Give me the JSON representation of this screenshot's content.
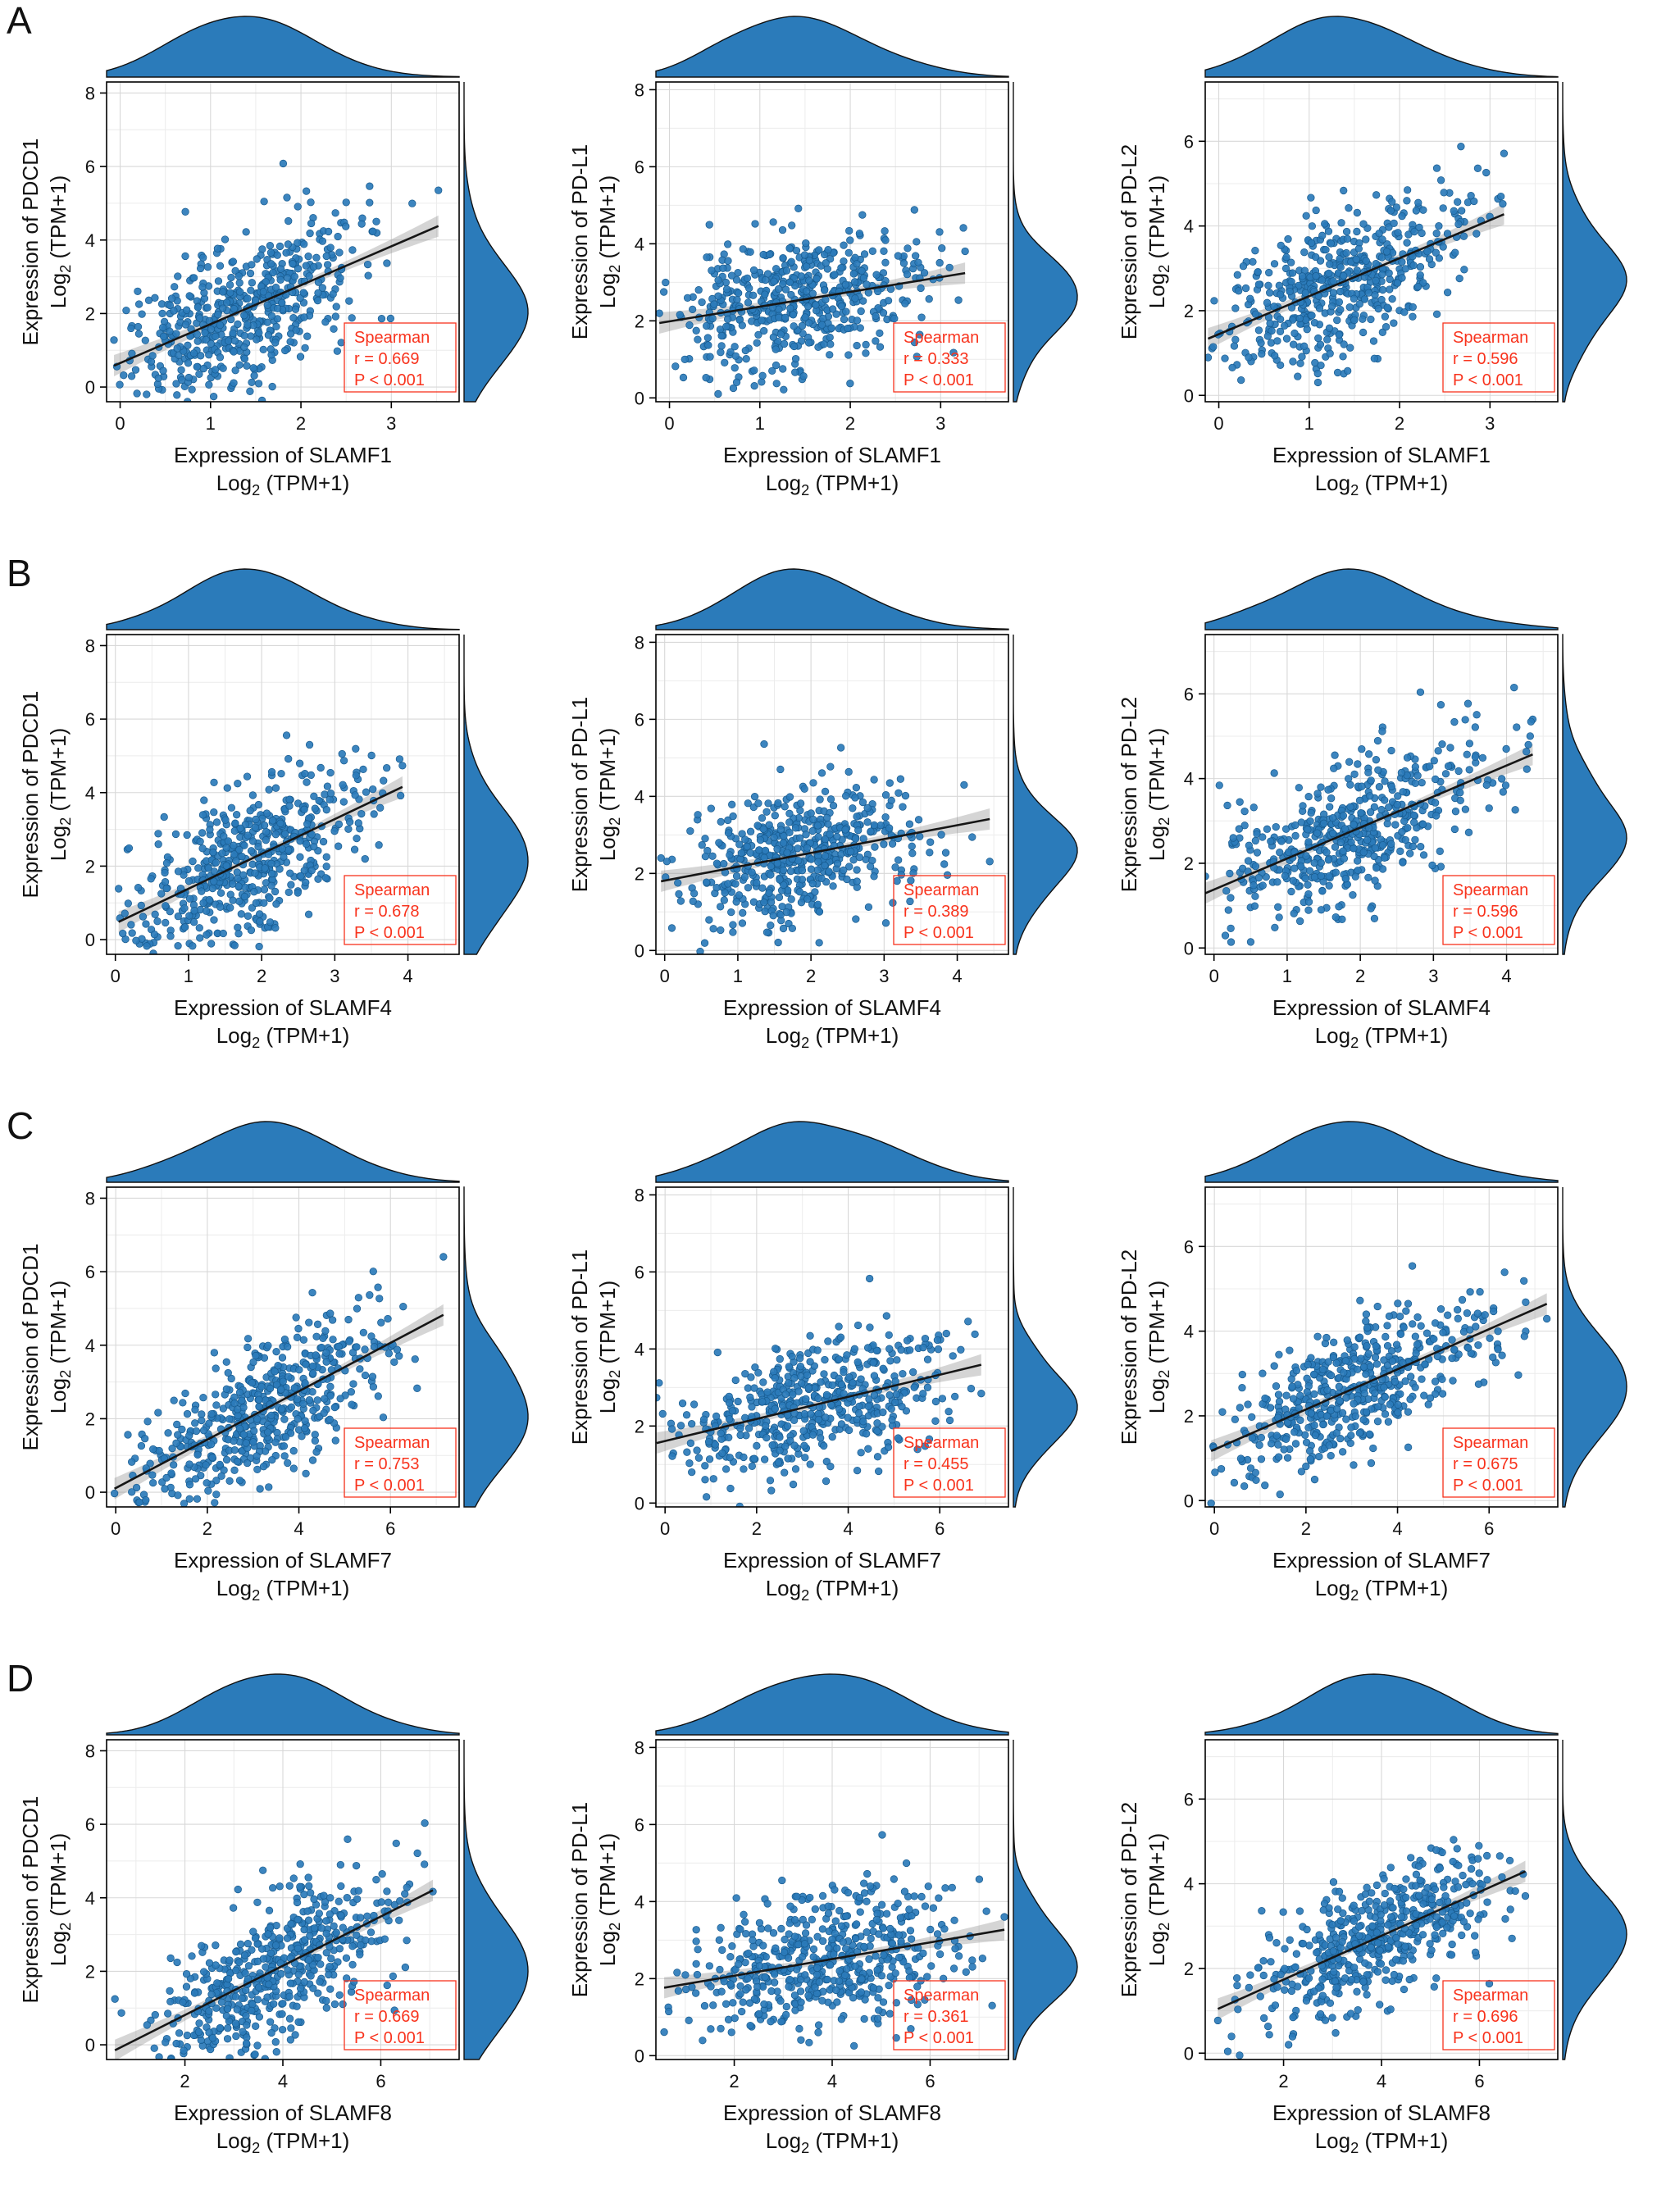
{
  "figure": {
    "background": "#ffffff",
    "rows": [
      {
        "label": "A",
        "x_gene": "SLAMF1"
      },
      {
        "label": "B",
        "x_gene": "SLAMF4"
      },
      {
        "label": "C",
        "x_gene": "SLAMF7"
      },
      {
        "label": "D",
        "x_gene": "SLAMF8"
      }
    ]
  },
  "style": {
    "point_color": "#2b7bba",
    "point_edge": "#175a8e",
    "density_fill": "#2b7bba",
    "density_edge": "#111111",
    "line_color": "#161616",
    "band_color": "#888888",
    "stats_color": "#f8331d",
    "grid_major": "#d8d8d8",
    "grid_minor": "#ececec",
    "axis_color": "#000000",
    "text_color": "#111111"
  },
  "chart_data": {
    "type": "scatter",
    "note": "Scatter plots with top/right marginal density curves, linear fit with confidence band, Spearman correlation annotation",
    "charts": [
      {
        "panel": "A",
        "x_label": "Expression of SLAMF1",
        "y_label": "Expression of PDCD1",
        "sub_label": "Log2 (TPM+1)",
        "stats": {
          "method": "Spearman",
          "r_text": "r = 0.669",
          "p_text": "P < 0.001",
          "r_value": 0.669
        },
        "x": {
          "min": -0.15,
          "max": 3.75,
          "ticks": [
            0,
            1,
            2,
            3
          ],
          "mean": 1.35,
          "sd": 0.72
        },
        "y": {
          "min": -0.4,
          "max": 8.3,
          "ticks": [
            0,
            2,
            4,
            6,
            8
          ],
          "mean": 2.1,
          "sd": 1.35
        },
        "n": 520
      },
      {
        "panel": "A",
        "x_label": "Expression of SLAMF1",
        "y_label": "Expression of PD-L1",
        "sub_label": "Log2 (TPM+1)",
        "stats": {
          "method": "Spearman",
          "r_text": "r = 0.333",
          "p_text": "P < 0.001",
          "r_value": 0.333
        },
        "x": {
          "min": -0.15,
          "max": 3.75,
          "ticks": [
            0,
            1,
            2,
            3
          ],
          "mean": 1.35,
          "sd": 0.72
        },
        "y": {
          "min": -0.1,
          "max": 8.2,
          "ticks": [
            0,
            2,
            4,
            6,
            8
          ],
          "mean": 2.5,
          "sd": 0.95
        },
        "n": 520
      },
      {
        "panel": "A",
        "x_label": "Expression of SLAMF1",
        "y_label": "Expression of PD-L2",
        "sub_label": "Log2 (TPM+1)",
        "stats": {
          "method": "Spearman",
          "r_text": "r = 0.596",
          "p_text": "P < 0.001",
          "r_value": 0.596
        },
        "x": {
          "min": -0.15,
          "max": 3.75,
          "ticks": [
            0,
            1,
            2,
            3
          ],
          "mean": 1.35,
          "sd": 0.72
        },
        "y": {
          "min": -0.15,
          "max": 7.4,
          "ticks": [
            0,
            2,
            4,
            6
          ],
          "mean": 2.7,
          "sd": 1.0
        },
        "n": 520
      },
      {
        "panel": "B",
        "x_label": "Expression of SLAMF4",
        "y_label": "Expression of PDCD1",
        "sub_label": "Log2 (TPM+1)",
        "stats": {
          "method": "Spearman",
          "r_text": "r = 0.678",
          "p_text": "P < 0.001",
          "r_value": 0.678
        },
        "x": {
          "min": -0.12,
          "max": 4.7,
          "ticks": [
            0,
            1,
            2,
            3,
            4
          ],
          "mean": 1.85,
          "sd": 0.85
        },
        "y": {
          "min": -0.4,
          "max": 8.3,
          "ticks": [
            0,
            2,
            4,
            6,
            8
          ],
          "mean": 2.1,
          "sd": 1.35
        },
        "n": 520
      },
      {
        "panel": "B",
        "x_label": "Expression of SLAMF4",
        "y_label": "Expression of PD-L1",
        "sub_label": "Log2 (TPM+1)",
        "stats": {
          "method": "Spearman",
          "r_text": "r = 0.389",
          "p_text": "P < 0.001",
          "r_value": 0.389
        },
        "x": {
          "min": -0.12,
          "max": 4.7,
          "ticks": [
            0,
            1,
            2,
            3,
            4
          ],
          "mean": 1.85,
          "sd": 0.85
        },
        "y": {
          "min": -0.1,
          "max": 8.2,
          "ticks": [
            0,
            2,
            4,
            6,
            8
          ],
          "mean": 2.5,
          "sd": 0.95
        },
        "n": 520
      },
      {
        "panel": "B",
        "x_label": "Expression of SLAMF4",
        "y_label": "Expression of PD-L2",
        "sub_label": "Log2 (TPM+1)",
        "stats": {
          "method": "Spearman",
          "r_text": "r = 0.596",
          "p_text": "P < 0.001",
          "r_value": 0.596
        },
        "x": {
          "min": -0.12,
          "max": 4.7,
          "ticks": [
            0,
            1,
            2,
            3,
            4
          ],
          "mean": 1.85,
          "sd": 0.85
        },
        "y": {
          "min": -0.15,
          "max": 7.4,
          "ticks": [
            0,
            2,
            4,
            6
          ],
          "mean": 2.7,
          "sd": 1.0
        },
        "n": 520
      },
      {
        "panel": "C",
        "x_label": "Expression of SLAMF7",
        "y_label": "Expression of PDCD1",
        "sub_label": "Log2 (TPM+1)",
        "stats": {
          "method": "Spearman",
          "r_text": "r = 0.753",
          "p_text": "P < 0.001",
          "r_value": 0.753
        },
        "x": {
          "min": -0.2,
          "max": 7.5,
          "ticks": [
            0,
            2,
            4,
            6
          ],
          "mean": 3.1,
          "sd": 1.45
        },
        "y": {
          "min": -0.4,
          "max": 8.3,
          "ticks": [
            0,
            2,
            4,
            6,
            8
          ],
          "mean": 2.1,
          "sd": 1.35
        },
        "n": 520
      },
      {
        "panel": "C",
        "x_label": "Expression of SLAMF7",
        "y_label": "Expression of PD-L1",
        "sub_label": "Log2 (TPM+1)",
        "stats": {
          "method": "Spearman",
          "r_text": "r = 0.455",
          "p_text": "P < 0.001",
          "r_value": 0.455
        },
        "x": {
          "min": -0.2,
          "max": 7.5,
          "ticks": [
            0,
            2,
            4,
            6
          ],
          "mean": 3.1,
          "sd": 1.45
        },
        "y": {
          "min": -0.1,
          "max": 8.2,
          "ticks": [
            0,
            2,
            4,
            6,
            8
          ],
          "mean": 2.5,
          "sd": 0.95
        },
        "n": 520
      },
      {
        "panel": "C",
        "x_label": "Expression of SLAMF7",
        "y_label": "Expression of PD-L2",
        "sub_label": "Log2 (TPM+1)",
        "stats": {
          "method": "Spearman",
          "r_text": "r = 0.675",
          "p_text": "P < 0.001",
          "r_value": 0.675
        },
        "x": {
          "min": -0.2,
          "max": 7.5,
          "ticks": [
            0,
            2,
            4,
            6
          ],
          "mean": 3.1,
          "sd": 1.45
        },
        "y": {
          "min": -0.15,
          "max": 7.4,
          "ticks": [
            0,
            2,
            4,
            6
          ],
          "mean": 2.7,
          "sd": 1.0
        },
        "n": 520
      },
      {
        "panel": "D",
        "x_label": "Expression of SLAMF8",
        "y_label": "Expression of PDCD1",
        "sub_label": "Log2 (TPM+1)",
        "stats": {
          "method": "Spearman",
          "r_text": "r = 0.669",
          "p_text": "P < 0.001",
          "r_value": 0.669
        },
        "x": {
          "min": 0.4,
          "max": 7.6,
          "ticks": [
            2,
            4,
            6
          ],
          "mean": 3.9,
          "sd": 1.3
        },
        "y": {
          "min": -0.4,
          "max": 8.3,
          "ticks": [
            0,
            2,
            4,
            6,
            8
          ],
          "mean": 2.1,
          "sd": 1.35
        },
        "n": 520
      },
      {
        "panel": "D",
        "x_label": "Expression of SLAMF8",
        "y_label": "Expression of PD-L1",
        "sub_label": "Log2 (TPM+1)",
        "stats": {
          "method": "Spearman",
          "r_text": "r = 0.361",
          "p_text": "P < 0.001",
          "r_value": 0.361
        },
        "x": {
          "min": 0.4,
          "max": 7.6,
          "ticks": [
            2,
            4,
            6
          ],
          "mean": 3.9,
          "sd": 1.3
        },
        "y": {
          "min": -0.1,
          "max": 8.2,
          "ticks": [
            0,
            2,
            4,
            6,
            8
          ],
          "mean": 2.5,
          "sd": 0.95
        },
        "n": 520
      },
      {
        "panel": "D",
        "x_label": "Expression of SLAMF8",
        "y_label": "Expression of PD-L2",
        "sub_label": "Log2 (TPM+1)",
        "stats": {
          "method": "Spearman",
          "r_text": "r = 0.696",
          "p_text": "P < 0.001",
          "r_value": 0.696
        },
        "x": {
          "min": 0.4,
          "max": 7.6,
          "ticks": [
            2,
            4,
            6
          ],
          "mean": 3.9,
          "sd": 1.3
        },
        "y": {
          "min": -0.15,
          "max": 7.4,
          "ticks": [
            0,
            2,
            4,
            6
          ],
          "mean": 2.7,
          "sd": 1.0
        },
        "n": 520
      }
    ]
  }
}
